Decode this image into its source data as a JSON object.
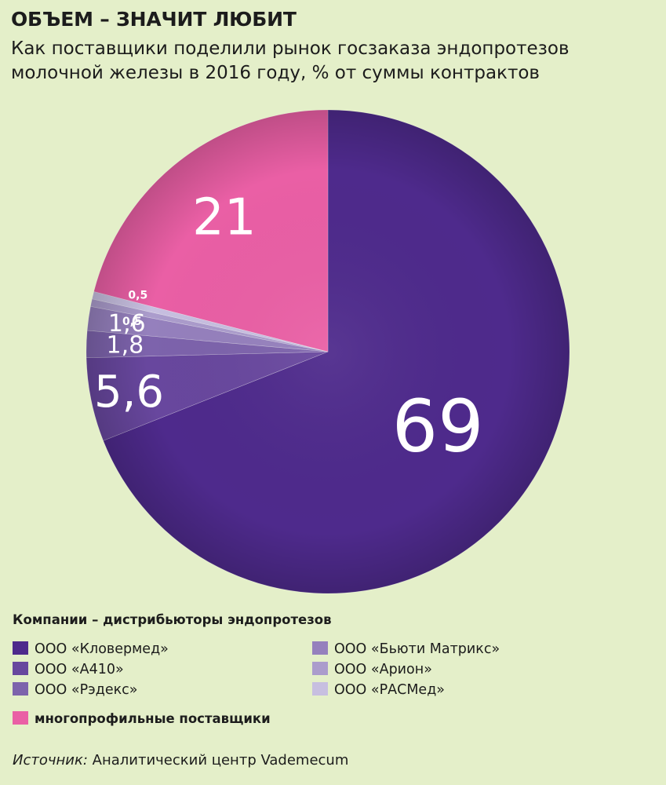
{
  "header": {
    "title": "ОБЪЕМ – ЗНАЧИТ ЛЮБИТ",
    "subtitle": "Как поставщики поделили рынок госзаказа эндопротезов молочной железы в 2016 году, % от суммы контрактов"
  },
  "chart_data": {
    "type": "pie",
    "start_angle_deg": 0,
    "direction": "clockwise",
    "slices": [
      {
        "label": "ООО «Кловермед»",
        "value": 69,
        "display": "69",
        "color": "#4e2a8c"
      },
      {
        "label": "ООО «А410»",
        "value": 5.6,
        "display": "5,6",
        "color": "#68479e"
      },
      {
        "label": "ООО «Рэдекс»",
        "value": 1.8,
        "display": "1,8",
        "color": "#7d63ac"
      },
      {
        "label": "ООО «Бьюти Матрикс»",
        "value": 1.6,
        "display": "1,6",
        "color": "#9580bd"
      },
      {
        "label": "ООО «Арион»",
        "value": 0.5,
        "display": "0,5",
        "color": "#ab9ccc"
      },
      {
        "label": "ООО «РАСМед»",
        "value": 0.5,
        "display": "0,5",
        "color": "#c7bfe0"
      },
      {
        "label": "многопрофильные поставщики",
        "value": 21,
        "display": "21",
        "color": "#ea5fa5"
      }
    ]
  },
  "legend": {
    "title": "Компании – дистрибьюторы эндопротезов",
    "items": [
      {
        "label": "ООО «Кловермед»",
        "color": "#4e2a8c"
      },
      {
        "label": "ООО «А410»",
        "color": "#68479e"
      },
      {
        "label": "ООО «Рэдекс»",
        "color": "#7d63ac"
      },
      {
        "label": "ООО «Бьюти Матрикс»",
        "color": "#9580bd"
      },
      {
        "label": "ООО «Арион»",
        "color": "#ab9ccc"
      },
      {
        "label": "ООО «РАСМед»",
        "color": "#c7bfe0"
      },
      {
        "label": "многопрофильные поставщики",
        "color": "#ea5fa5"
      }
    ]
  },
  "source": {
    "label": "Источник:",
    "text": "Аналитический центр Vademecum"
  }
}
